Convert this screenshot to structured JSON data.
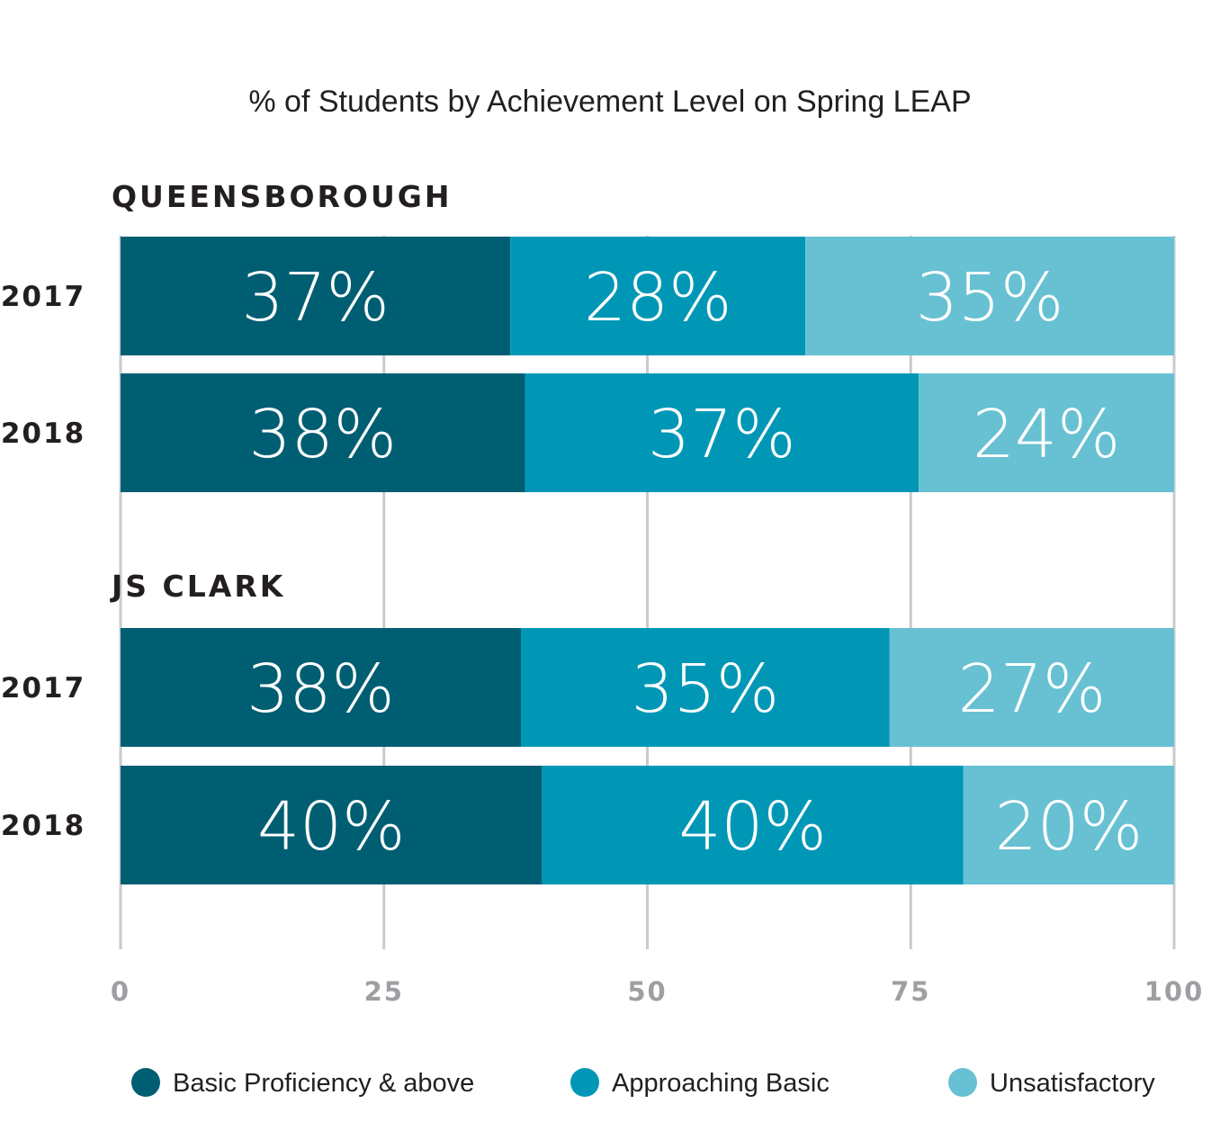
{
  "chart_data": {
    "type": "bar",
    "orientation": "horizontal",
    "stacked": true,
    "title": "% of Students by Achievement Level on Spring LEAP",
    "xlim": [
      0,
      100
    ],
    "xticks": [
      0,
      25,
      50,
      75,
      100
    ],
    "grid": true,
    "legend_position": "bottom",
    "series": [
      {
        "name": "Basic Proficiency & above",
        "color": "#005e73"
      },
      {
        "name": "Approaching Basic",
        "color": "#0097b6"
      },
      {
        "name": "Unsatisfactory",
        "color": "#67c1d3"
      }
    ],
    "groups": [
      {
        "name": "QUEENSBOROUGH",
        "rows": [
          {
            "label": "2017",
            "values": [
              37,
              28,
              35
            ],
            "labels": [
              "37%",
              "28%",
              "35%"
            ]
          },
          {
            "label": "2018",
            "values": [
              38,
              37,
              24
            ],
            "labels": [
              "38%",
              "37%",
              "24%"
            ]
          }
        ]
      },
      {
        "name": "JS CLARK",
        "rows": [
          {
            "label": "2017",
            "values": [
              38,
              35,
              27
            ],
            "labels": [
              "38%",
              "35%",
              "27%"
            ]
          },
          {
            "label": "2018",
            "values": [
              40,
              40,
              20
            ],
            "labels": [
              "40%",
              "40%",
              "20%"
            ]
          }
        ]
      }
    ]
  }
}
